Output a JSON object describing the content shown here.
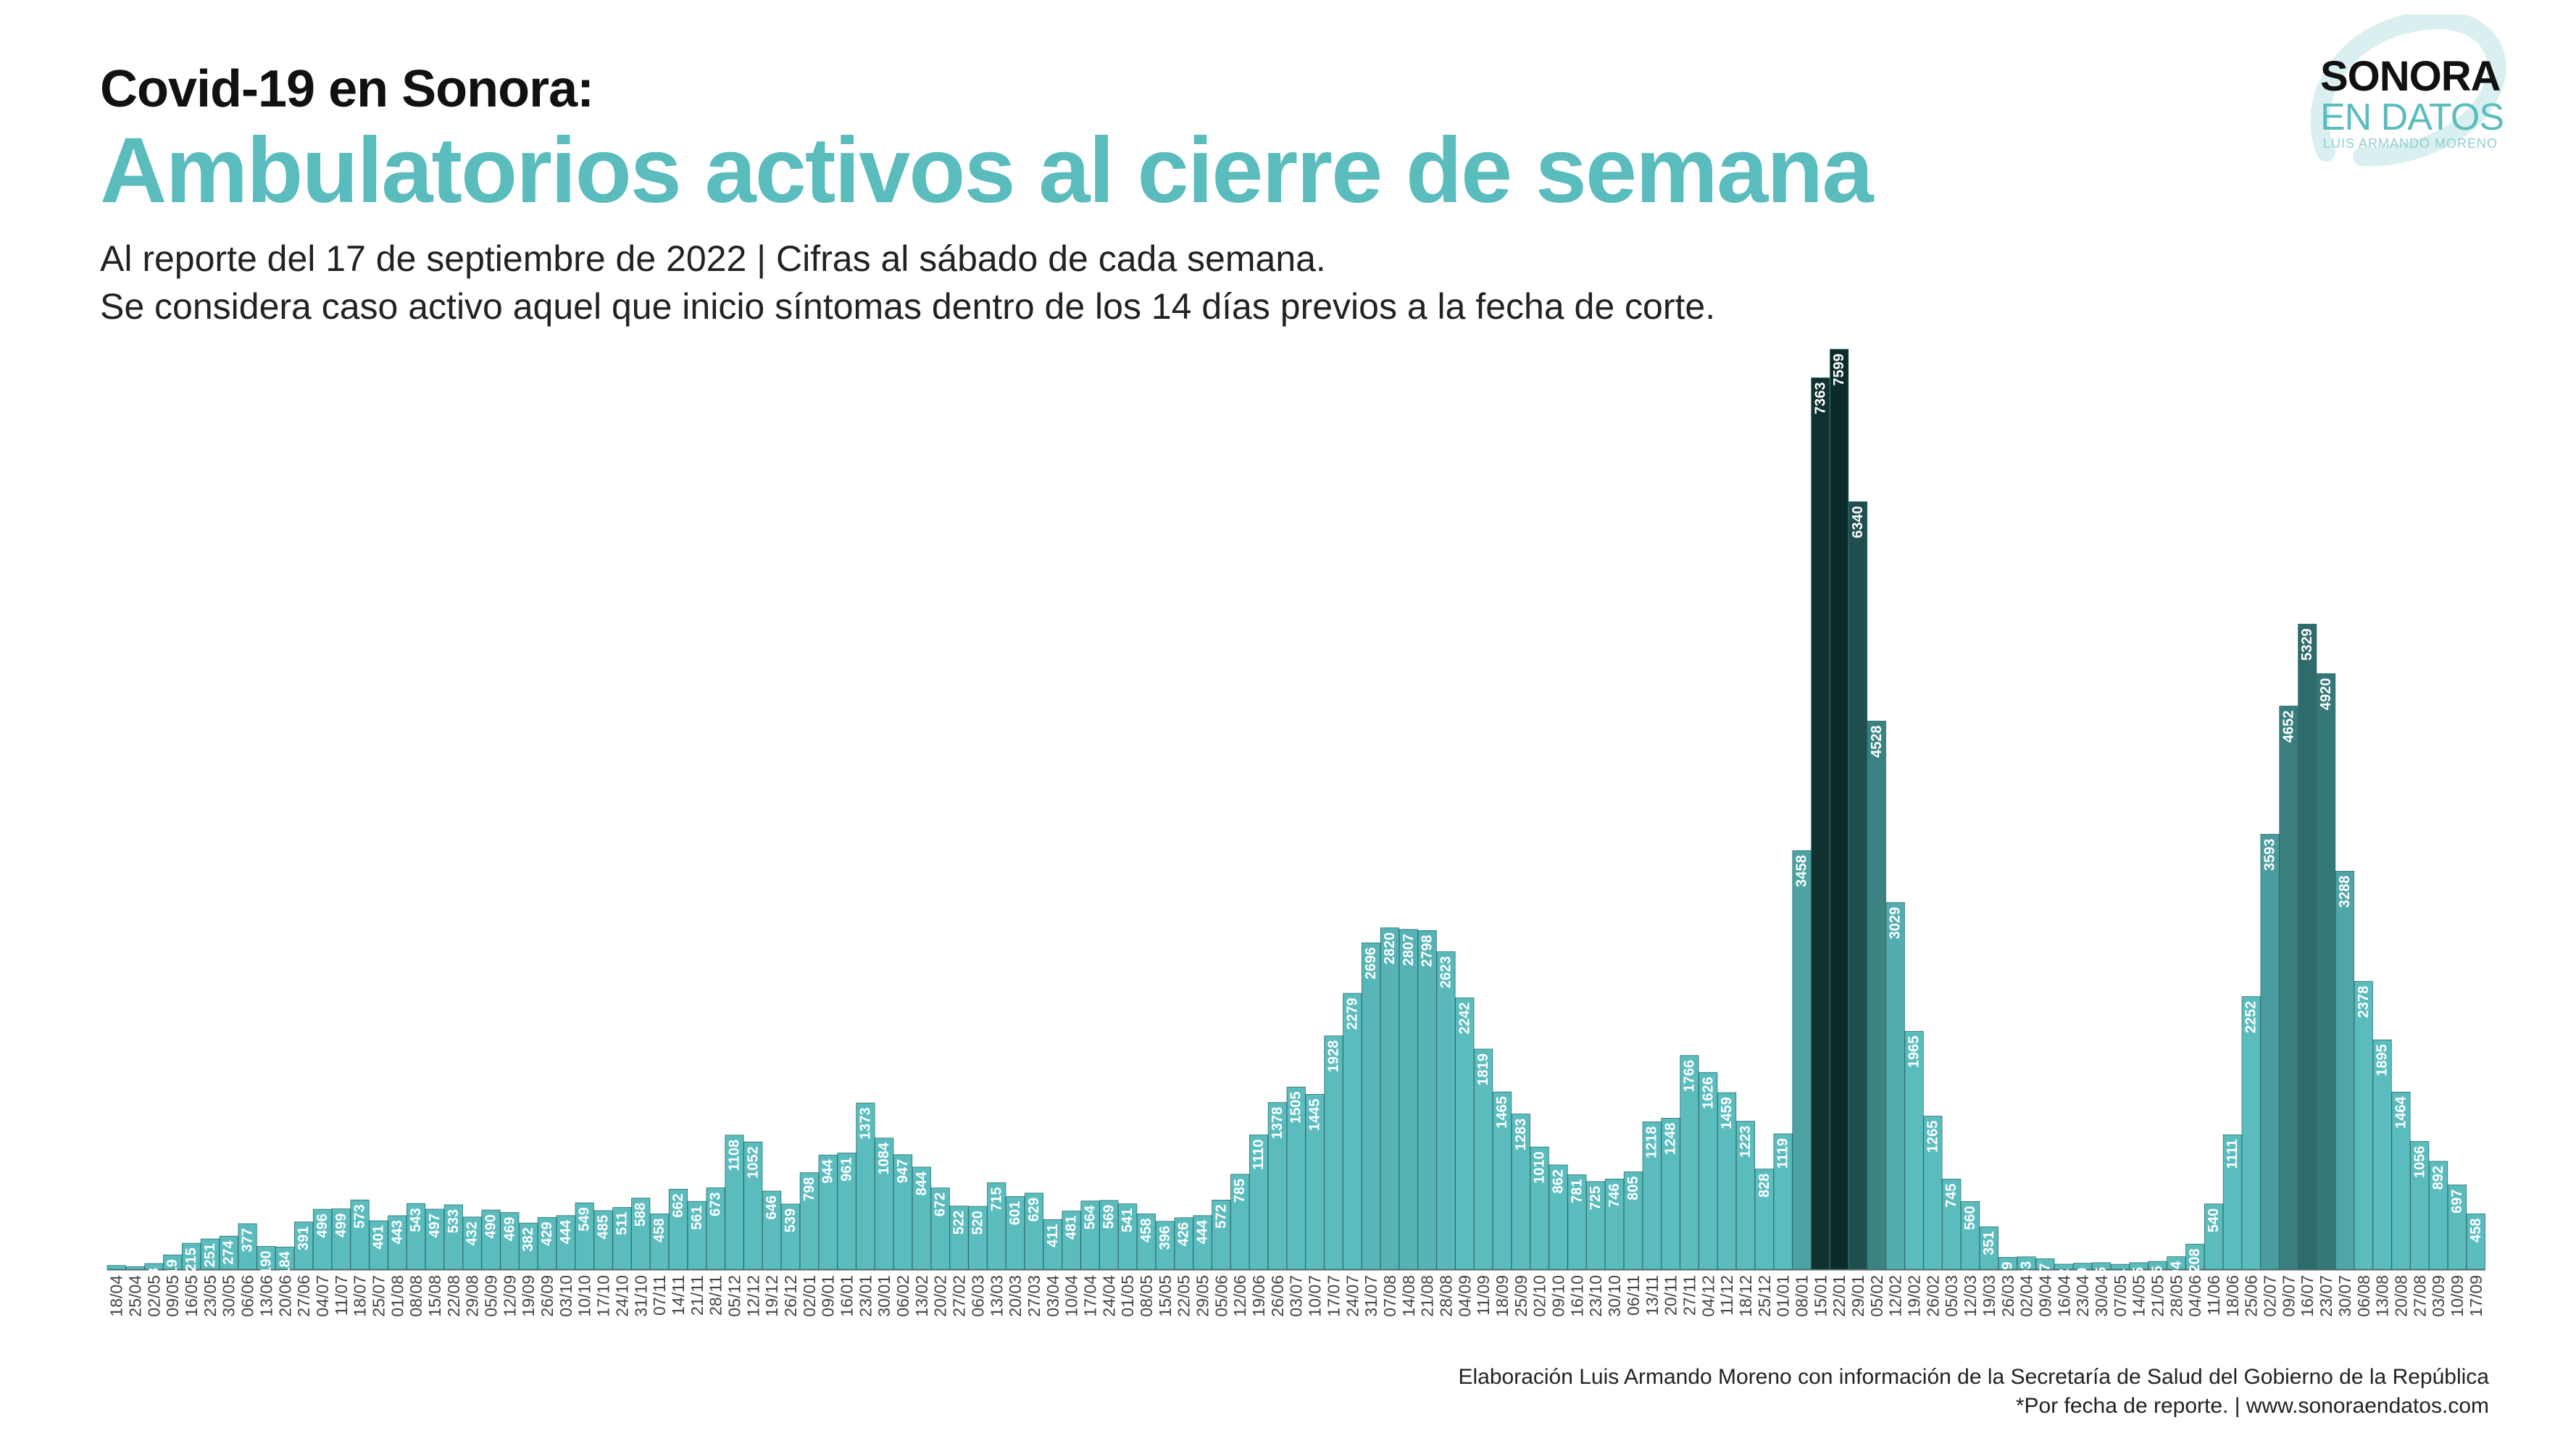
{
  "header": {
    "title_line1": "Covid-19  en Sonora:",
    "title_line2": "Ambulatorios activos al cierre de semana",
    "subtitle_line1": "Al reporte del 17 de septiembre de 2022  | Cifras al sábado de cada semana.",
    "subtitle_line2": "Se considera caso activo aquel que inicio síntomas dentro de los 14 días previos a la fecha de corte."
  },
  "logo": {
    "main": "SONORA",
    "sub": "EN DATOS",
    "author": "LUIS ARMANDO MORENO"
  },
  "footer": {
    "line1": "Elaboración Luis Armando Moreno con información de la Secretaría de Salud del Gobierno de la República",
    "line2": "*Por fecha de reporte. | www.sonoraendatos.com"
  },
  "colors": {
    "bar_light": "#5bbcbe",
    "bar_dark": "#0d2a2a",
    "label_text": "#ffffff",
    "title_accent": "#5bbcbe"
  },
  "chart_data": {
    "type": "bar",
    "title": "Ambulatorios activos al cierre de semana",
    "xlabel": "",
    "ylabel": "",
    "ylim": [
      0,
      7599
    ],
    "grid": false,
    "categories": [
      "18/04",
      "25/04",
      "02/05",
      "09/05",
      "16/05",
      "23/05",
      "30/05",
      "06/06",
      "13/06",
      "20/06",
      "27/06",
      "04/07",
      "11/07",
      "18/07",
      "25/07",
      "01/08",
      "08/08",
      "15/08",
      "22/08",
      "29/08",
      "05/09",
      "12/09",
      "19/09",
      "26/09",
      "03/10",
      "10/10",
      "17/10",
      "24/10",
      "31/10",
      "07/11",
      "14/11",
      "21/11",
      "28/11",
      "05/12",
      "12/12",
      "19/12",
      "26/12",
      "02/01",
      "09/01",
      "16/01",
      "23/01",
      "30/01",
      "06/02",
      "13/02",
      "20/02",
      "27/02",
      "06/03",
      "13/03",
      "20/03",
      "27/03",
      "03/04",
      "10/04",
      "17/04",
      "24/04",
      "01/05",
      "08/05",
      "15/05",
      "22/05",
      "29/05",
      "05/06",
      "12/06",
      "19/06",
      "26/06",
      "03/07",
      "10/07",
      "17/07",
      "24/07",
      "31/07",
      "07/08",
      "14/08",
      "21/08",
      "28/08",
      "04/09",
      "11/09",
      "18/09",
      "25/09",
      "02/10",
      "09/10",
      "16/10",
      "23/10",
      "30/10",
      "06/11",
      "13/11",
      "20/11",
      "27/11",
      "04/12",
      "11/12",
      "18/12",
      "25/12",
      "01/01",
      "08/01",
      "15/01",
      "22/01",
      "29/01",
      "05/02",
      "12/02",
      "19/02",
      "26/02",
      "05/03",
      "12/03",
      "19/03",
      "26/03",
      "02/04",
      "09/04",
      "16/04",
      "23/04",
      "30/04",
      "07/05",
      "14/05",
      "21/05",
      "28/05",
      "04/06",
      "11/06",
      "18/06",
      "25/06",
      "02/07",
      "09/07",
      "16/07",
      "23/07",
      "30/07",
      "06/08",
      "13/08",
      "20/08",
      "27/08",
      "03/09",
      "10/09",
      "17/09"
    ],
    "values": [
      32,
      22,
      48,
      119,
      215,
      251,
      274,
      377,
      190,
      184,
      391,
      496,
      499,
      573,
      401,
      443,
      543,
      497,
      533,
      432,
      490,
      469,
      382,
      429,
      444,
      549,
      485,
      511,
      588,
      458,
      662,
      561,
      673,
      1108,
      1052,
      646,
      539,
      798,
      944,
      961,
      1373,
      1084,
      947,
      844,
      672,
      522,
      520,
      715,
      601,
      629,
      411,
      481,
      564,
      569,
      541,
      458,
      396,
      426,
      444,
      572,
      785,
      1110,
      1378,
      1505,
      1445,
      1928,
      2279,
      2696,
      2820,
      2807,
      2798,
      2623,
      2242,
      1819,
      1465,
      1283,
      1010,
      862,
      781,
      725,
      746,
      805,
      1218,
      1248,
      1766,
      1626,
      1459,
      1223,
      828,
      1119,
      3458,
      7363,
      7599,
      6340,
      4528,
      3029,
      1965,
      1265,
      745,
      560,
      351,
      99,
      103,
      87,
      42,
      50,
      55,
      41,
      55,
      65,
      104,
      208,
      540,
      1111,
      2252,
      3593,
      4652,
      5329,
      4920,
      3288,
      2378,
      1895,
      1464,
      1056,
      892,
      697,
      458
    ]
  }
}
